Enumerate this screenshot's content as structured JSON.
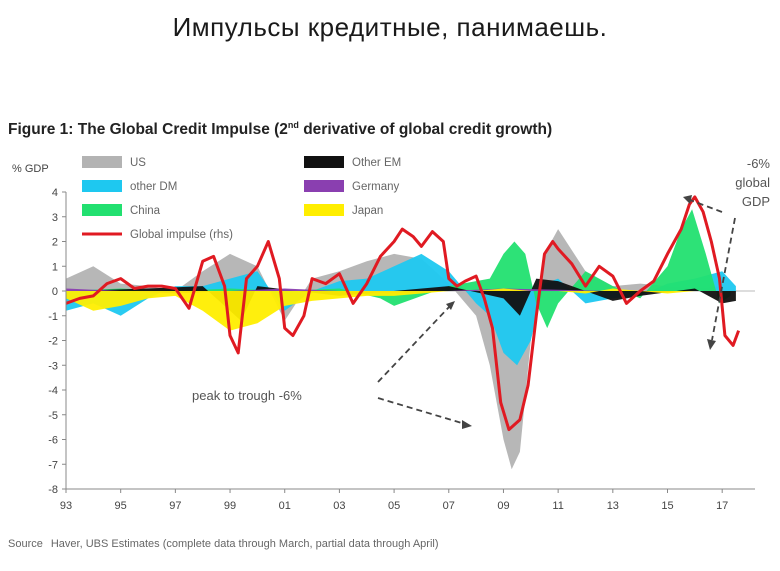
{
  "slide_title": "Импульсы кредитные, панимаешь.",
  "figure_title_pre": "Figure 1: The Global Credit Impulse (2",
  "figure_title_sup": "nd",
  "figure_title_post": " derivative of global credit growth)",
  "source_label": "Source",
  "source_text": "Haver, UBS Estimates (complete data through March, partial data through April)",
  "colors": {
    "US": "#b3b3b3",
    "other_DM": "#1ec8f0",
    "China": "#22e070",
    "Other_EM": "#111111",
    "Germany": "#8a3fb0",
    "Japan": "#ffee00",
    "Global_impulse": "#e01a22",
    "annotation": "#444444"
  },
  "chart_data": {
    "type": "area",
    "ylabel": "% GDP",
    "ylim": [
      -8,
      4
    ],
    "yticks": [
      -8,
      -7,
      -6,
      -5,
      -4,
      -3,
      -2,
      -1,
      0,
      1,
      2,
      3,
      4
    ],
    "xlim": [
      1993,
      2018.2
    ],
    "xticks": [
      "93",
      "95",
      "97",
      "99",
      "01",
      "03",
      "05",
      "07",
      "09",
      "11",
      "13",
      "15",
      "17"
    ],
    "legend": [
      {
        "name": "US",
        "color": "#b3b3b3"
      },
      {
        "name": "Other EM",
        "color": "#111111"
      },
      {
        "name": "other DM",
        "color": "#1ec8f0"
      },
      {
        "name": "Germany",
        "color": "#8a3fb0"
      },
      {
        "name": "China",
        "color": "#22e070"
      },
      {
        "name": "Japan",
        "color": "#ffee00"
      },
      {
        "name": "Global impulse (rhs)",
        "color": "#e01a22"
      }
    ],
    "global_impulse": {
      "x": [
        1993,
        1993.5,
        1994,
        1994.5,
        1995,
        1995.5,
        1996,
        1996.5,
        1997,
        1997.5,
        1998,
        1998.4,
        1998.8,
        1999,
        1999.3,
        1999.6,
        2000,
        2000.4,
        2000.8,
        2001,
        2001.3,
        2001.7,
        2002,
        2002.5,
        2003,
        2003.5,
        2004,
        2004.5,
        2005,
        2005.3,
        2005.7,
        2006,
        2006.4,
        2006.8,
        2007,
        2007.3,
        2007.6,
        2008,
        2008.3,
        2008.6,
        2008.9,
        2009.2,
        2009.6,
        2009.9,
        2010.2,
        2010.5,
        2010.8,
        2011,
        2011.5,
        2012,
        2012.5,
        2013,
        2013.5,
        2014,
        2014.5,
        2015,
        2015.5,
        2015.8,
        2016,
        2016.3,
        2016.6,
        2016.9,
        2017.1,
        2017.4,
        2017.6
      ],
      "values": [
        -0.5,
        -0.3,
        -0.2,
        0.3,
        0.5,
        0.1,
        0.2,
        0.2,
        0.1,
        -0.7,
        1.2,
        1.4,
        0.2,
        -1.8,
        -2.5,
        0.5,
        1.0,
        2.0,
        0.5,
        -1.5,
        -1.8,
        -1.0,
        0.5,
        0.3,
        0.7,
        -0.5,
        0.3,
        1.4,
        2.0,
        2.5,
        2.2,
        1.8,
        2.4,
        2.0,
        0.5,
        0.2,
        0.4,
        0.6,
        -0.3,
        -1.5,
        -4.5,
        -5.6,
        -5.2,
        -3.8,
        -1.0,
        1.5,
        2.0,
        1.7,
        1.1,
        0.2,
        1.0,
        0.6,
        -0.5,
        0.0,
        0.4,
        1.5,
        2.5,
        3.5,
        3.8,
        3.2,
        2.0,
        0.5,
        -1.8,
        -2.2,
        -1.6
      ],
      "color": "#e01a22"
    },
    "series": [
      {
        "name": "US",
        "x": [
          1993,
          1994,
          1995,
          1996,
          1997,
          1998,
          1999,
          2000,
          2001,
          2002,
          2003,
          2004,
          2005,
          2006,
          2007,
          2008,
          2008.5,
          2009,
          2009.3,
          2009.6,
          2010,
          2010.5,
          2011,
          2012,
          2013,
          2014,
          2015,
          2016,
          2017
        ],
        "values": [
          0.5,
          1.0,
          0.3,
          0.2,
          0.0,
          0.8,
          1.5,
          1.0,
          -1.2,
          0.5,
          0.8,
          1.2,
          1.5,
          1.3,
          0.3,
          -1.0,
          -3.0,
          -6.0,
          -7.2,
          -6.5,
          -2.0,
          1.5,
          2.5,
          0.8,
          0.2,
          0.3,
          0.2,
          0.1,
          0.2
        ],
        "color": "#b3b3b3"
      },
      {
        "name": "other DM",
        "x": [
          1993,
          1994,
          1995,
          1996,
          1997,
          1998,
          1999,
          2000,
          2001,
          2002,
          2003,
          2004,
          2005,
          2006,
          2007,
          2008,
          2008.5,
          2009,
          2009.5,
          2010,
          2010.5,
          2011,
          2012,
          2013,
          2014,
          2015,
          2016,
          2017,
          2017.5
        ],
        "values": [
          -0.8,
          -0.5,
          -1.0,
          -0.3,
          0.2,
          0.2,
          0.5,
          0.8,
          -0.8,
          0.0,
          0.4,
          0.5,
          1.0,
          1.5,
          0.8,
          -0.5,
          -1.0,
          -2.5,
          -3.0,
          -2.0,
          0.3,
          0.5,
          -0.5,
          -0.3,
          -0.2,
          0.3,
          0.5,
          0.8,
          0.2
        ],
        "color": "#1ec8f0"
      },
      {
        "name": "China",
        "x": [
          1993,
          1995,
          1997,
          1999,
          2001,
          2003,
          2004.5,
          2005,
          2007,
          2008.5,
          2009,
          2009.4,
          2009.8,
          2010.2,
          2010.6,
          2011,
          2012,
          2013,
          2014,
          2015,
          2015.5,
          2015.9,
          2016.4,
          2016.9,
          2017.3
        ],
        "values": [
          0.0,
          0.1,
          0.0,
          0.1,
          0.0,
          0.1,
          -0.3,
          -0.6,
          0.2,
          0.5,
          1.5,
          2.0,
          1.5,
          -0.5,
          -1.5,
          -0.5,
          0.8,
          0.2,
          -0.3,
          1.0,
          2.5,
          3.3,
          1.5,
          -0.5,
          -0.2
        ],
        "color": "#22e070"
      },
      {
        "name": "Other EM",
        "x": [
          1993,
          1996,
          1998,
          1999,
          1999.4,
          2000,
          2003,
          2007,
          2009,
          2009.6,
          2010.2,
          2011,
          2013,
          2014,
          2016,
          2017,
          2017.5
        ],
        "values": [
          0.0,
          0.1,
          0.2,
          -0.8,
          -1.2,
          0.2,
          -0.2,
          0.2,
          -0.3,
          -1.0,
          0.5,
          0.4,
          -0.4,
          -0.2,
          0.1,
          -0.5,
          -0.4
        ],
        "color": "#111111"
      },
      {
        "name": "Germany",
        "x": [
          1993,
          1997,
          2001,
          2005,
          2009,
          2013,
          2017
        ],
        "values": [
          0.1,
          -0.1,
          0.1,
          -0.1,
          0.1,
          0.0,
          0.0
        ],
        "color": "#8a3fb0"
      },
      {
        "name": "Japan",
        "x": [
          1993,
          1994,
          1995,
          1996,
          1997,
          1998,
          1999,
          2000,
          2001,
          2002,
          2003,
          2004,
          2005,
          2006,
          2007,
          2008,
          2009,
          2010,
          2011,
          2012,
          2013,
          2014,
          2015,
          2016,
          2017
        ],
        "values": [
          -0.3,
          -0.8,
          -0.6,
          -0.3,
          -0.2,
          -0.8,
          -1.6,
          -1.3,
          -0.6,
          -0.4,
          -0.3,
          -0.2,
          -0.2,
          -0.1,
          0.0,
          0.0,
          0.1,
          0.0,
          0.0,
          -0.1,
          0.1,
          0.0,
          -0.1,
          0.0,
          0.0
        ],
        "color": "#ffee00"
      }
    ],
    "annotations": [
      {
        "text": "peak to trough -6%"
      },
      {
        "text": "-6%"
      },
      {
        "text": "global"
      },
      {
        "text": "GDP"
      }
    ]
  }
}
